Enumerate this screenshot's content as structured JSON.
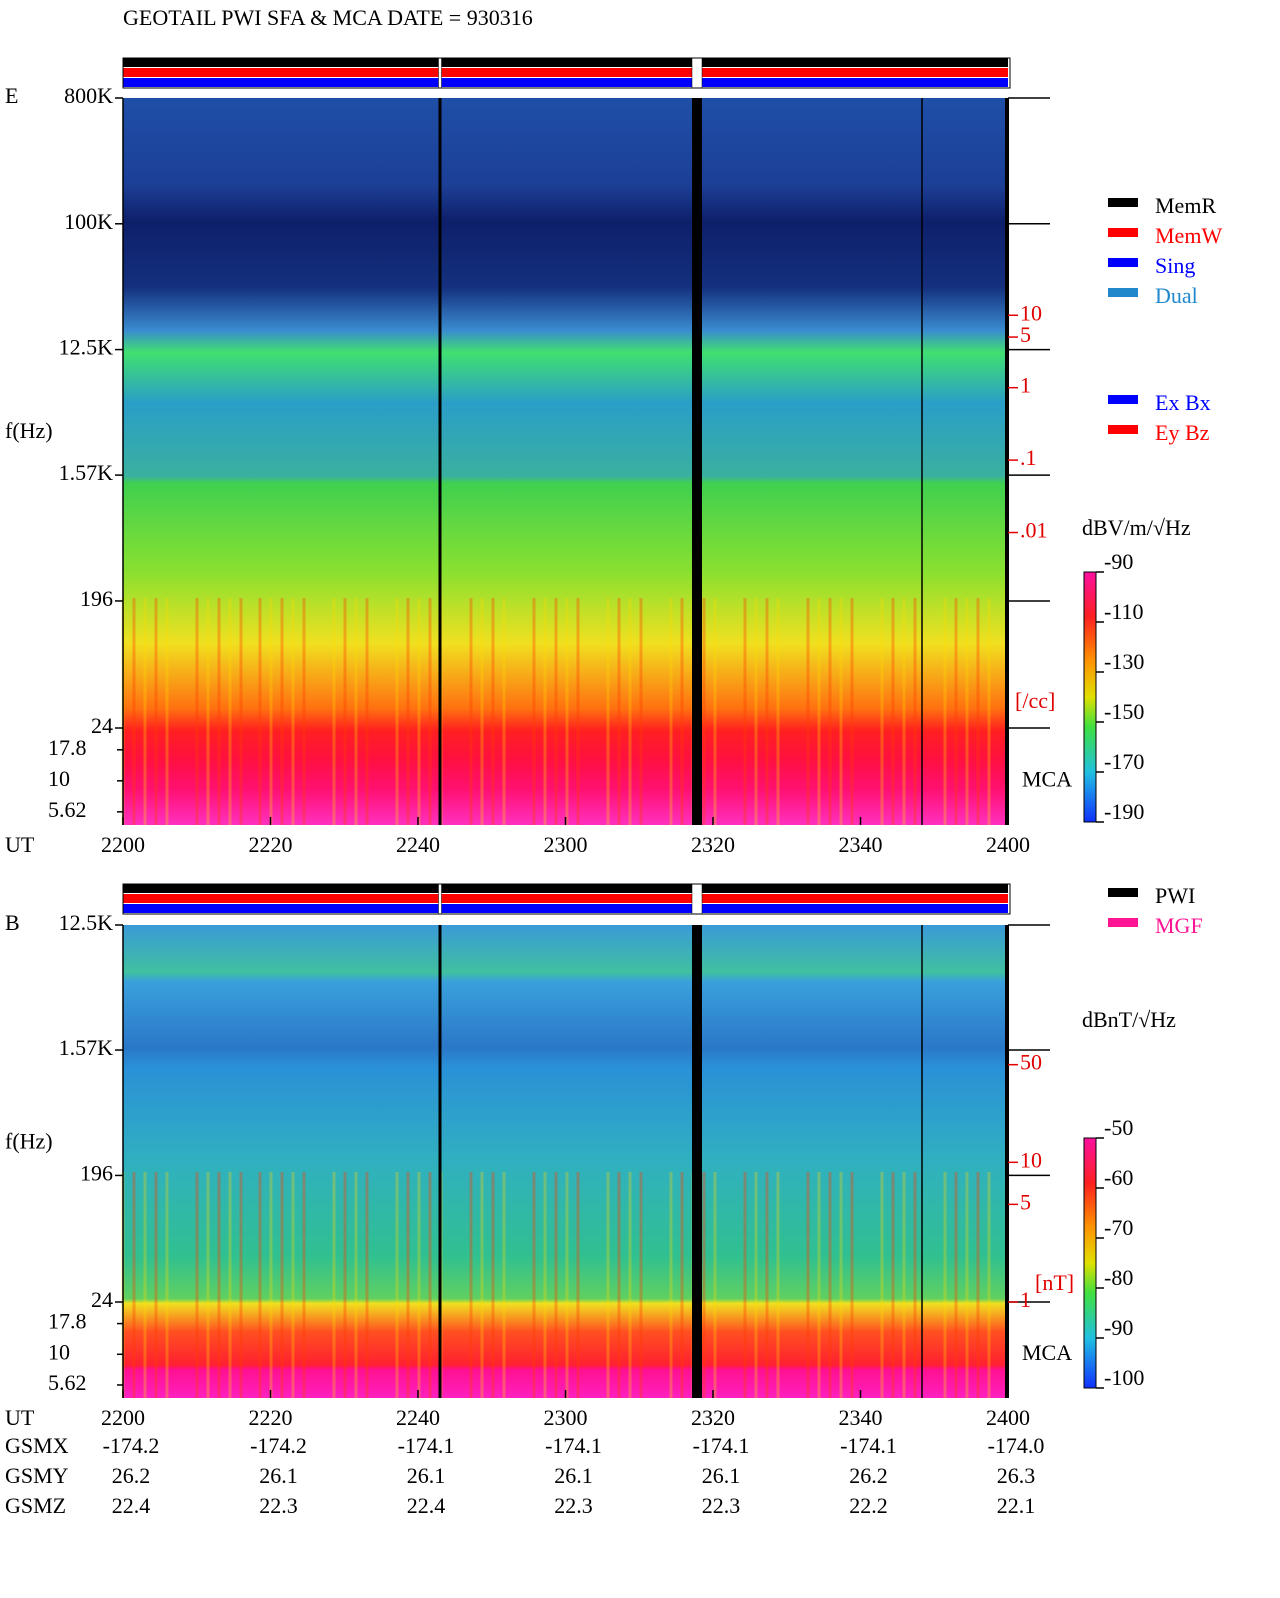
{
  "title": "GEOTAIL  PWI SFA & MCA   DATE = 930316",
  "chart_data": [
    {
      "type": "spectrogram",
      "panel_label": "E",
      "y_label": "f(Hz)",
      "x_label": "UT",
      "ylog": true,
      "ylim": [
        24,
        800000
      ],
      "yticks": [
        {
          "value": 800000,
          "label": "800K"
        },
        {
          "value": 100000,
          "label": "100K"
        },
        {
          "value": 12500,
          "label": "12.5K"
        },
        {
          "value": 1570,
          "label": "1.57K"
        },
        196,
        24
      ],
      "mca_label": "MCA",
      "mca_ylim": [
        4.4,
        26.7
      ],
      "mca_ticks": [
        17.8,
        10,
        5.62
      ],
      "x_categories": [
        "2200",
        "2220",
        "2240",
        "2300",
        "2320",
        "2340",
        "2400"
      ],
      "y2_label": "[/cc]",
      "y2log": true,
      "y2lim": [
        2e-05,
        10000
      ],
      "y2color": "#e00000",
      "y2ticks": [
        10,
        5,
        1,
        {
          "value": 0.1,
          "label": ".1"
        },
        {
          "value": 0.01,
          "label": ".01"
        }
      ],
      "colorbar": {
        "label": "dBV/m/√Hz",
        "zlim": [
          -190,
          -90
        ],
        "ticks": [
          -90,
          -110,
          -130,
          -150,
          -170,
          -190
        ]
      },
      "legend_groups": [
        [
          {
            "name": "MemR",
            "color": "#000000"
          },
          {
            "name": "MemW",
            "color": "#ff0000"
          },
          {
            "name": "Sing",
            "color": "#0000ff"
          },
          {
            "name": "Dual",
            "color": "#2288cc"
          }
        ],
        [
          {
            "name": "Ex Bx",
            "color": "#0000ff"
          },
          {
            "name": "Ey Bz",
            "color": "#ff0000"
          }
        ]
      ]
    },
    {
      "type": "spectrogram",
      "panel_label": "B",
      "y_label": "f(Hz)",
      "x_label": "UT",
      "ylog": true,
      "ylim": [
        24,
        12500
      ],
      "yticks": [
        {
          "value": 12500,
          "label": "12.5K"
        },
        {
          "value": 1570,
          "label": "1.57K"
        },
        196,
        24
      ],
      "mca_label": "MCA",
      "mca_ylim": [
        4.4,
        26.7
      ],
      "mca_ticks": [
        17.8,
        10,
        5.62
      ],
      "x_categories": [
        "2200",
        "2220",
        "2240",
        "2300",
        "2320",
        "2340",
        "2400"
      ],
      "y2_label": "[nT]",
      "y2log": true,
      "y2lim": [
        1,
        500
      ],
      "y2color": "#e00000",
      "y2ticks": [
        50,
        10,
        5,
        1
      ],
      "colorbar": {
        "label": "dBnT/√Hz",
        "zlim": [
          -100,
          -50
        ],
        "ticks": [
          -50,
          -60,
          -70,
          -80,
          -90,
          -100
        ]
      },
      "legend_groups": [
        [
          {
            "name": "PWI",
            "color": "#000000"
          },
          {
            "name": "MGF",
            "color": "#ff1493"
          }
        ]
      ]
    }
  ],
  "orbit": {
    "rows": [
      {
        "label": "GSMX",
        "values": [
          "-174.2",
          "-174.2",
          "-174.1",
          "-174.1",
          "-174.1",
          "-174.1",
          "-174.0"
        ]
      },
      {
        "label": "GSMY",
        "values": [
          "26.2",
          "26.1",
          "26.1",
          "26.1",
          "26.1",
          "26.2",
          "26.3"
        ]
      },
      {
        "label": "GSMZ",
        "values": [
          "22.4",
          "22.3",
          "22.4",
          "22.3",
          "22.3",
          "22.2",
          "22.1"
        ]
      }
    ]
  }
}
